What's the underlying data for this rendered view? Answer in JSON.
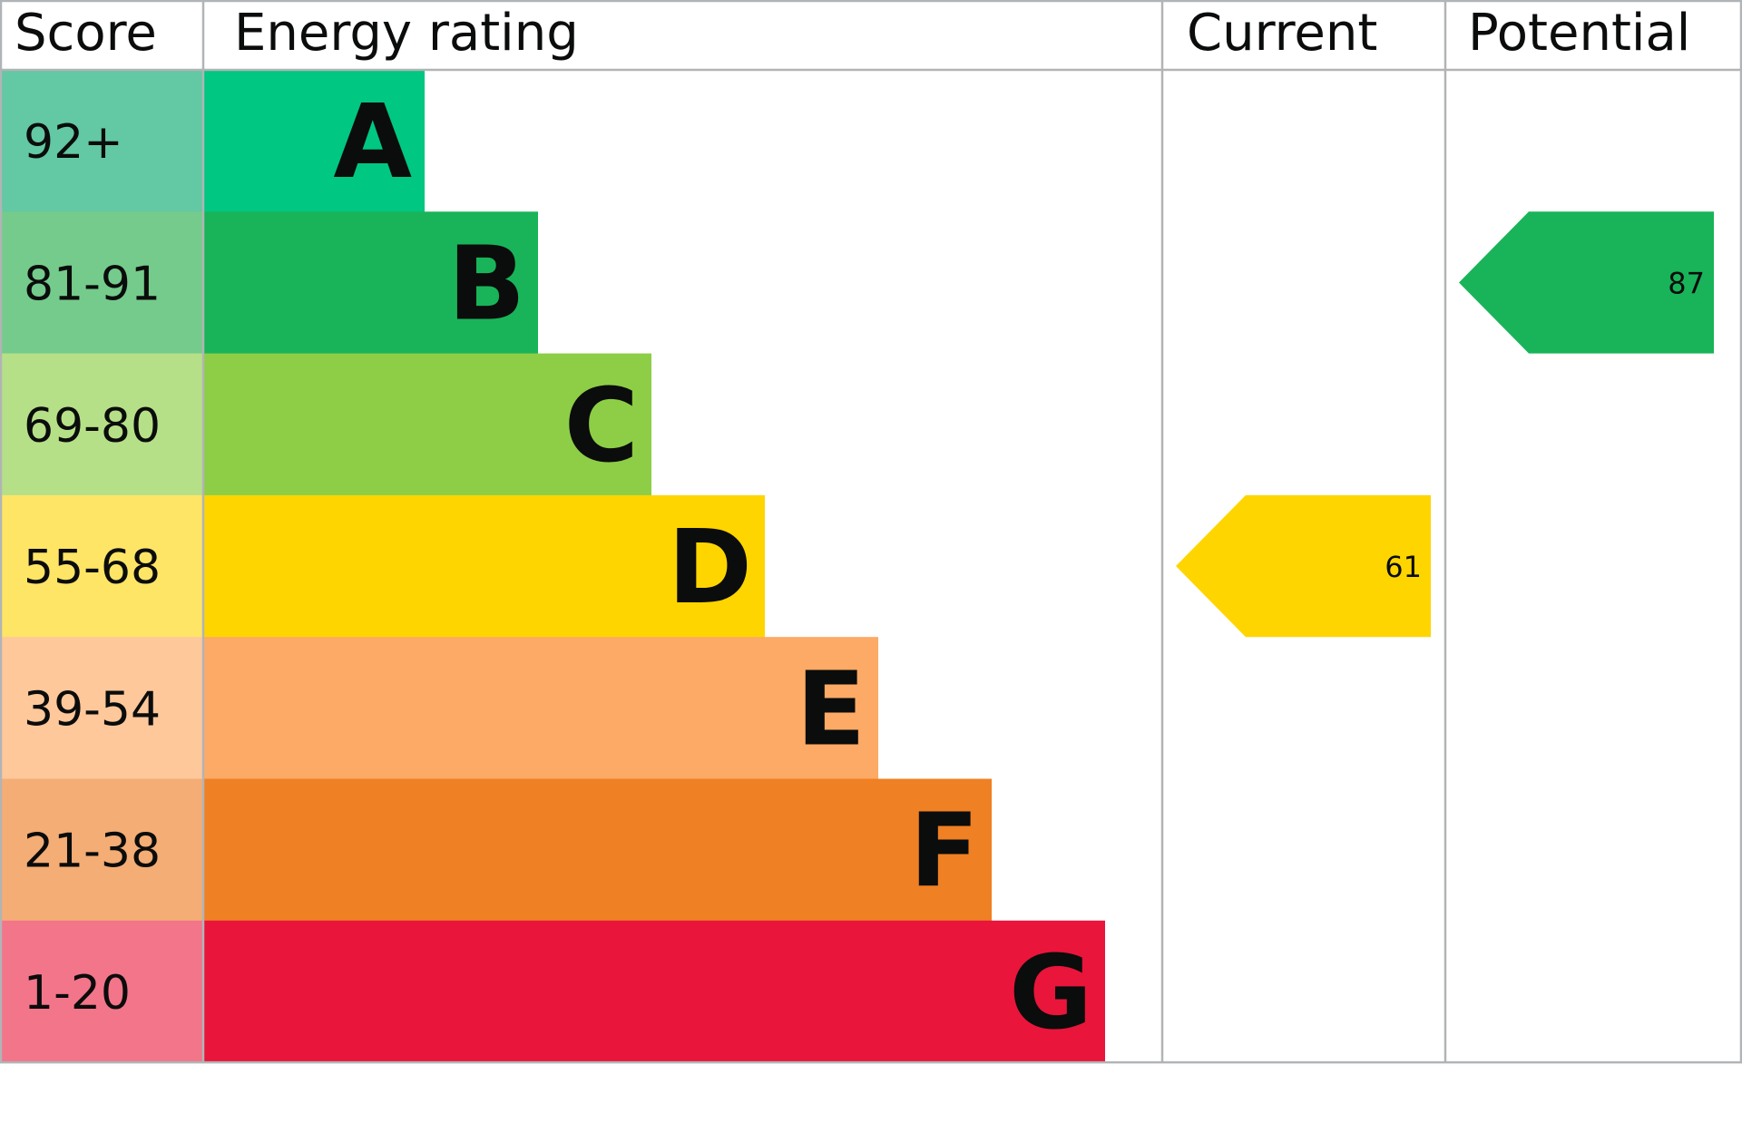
{
  "chart_data": {
    "type": "table",
    "headers": {
      "score": "Score",
      "rating": "Energy rating",
      "current": "Current",
      "potential": "Potential"
    },
    "bands": [
      {
        "letter": "A",
        "range": "92+",
        "color": "#00c781",
        "light": "#63c8a4"
      },
      {
        "letter": "B",
        "range": "81-91",
        "color": "#19b459",
        "light": "#75cb8b"
      },
      {
        "letter": "C",
        "range": "69-80",
        "color": "#8dce46",
        "light": "#b6e087"
      },
      {
        "letter": "D",
        "range": "55-68",
        "color": "#ffd500",
        "light": "#ffe566"
      },
      {
        "letter": "E",
        "range": "39-54",
        "color": "#fcaa65",
        "light": "#fec89b"
      },
      {
        "letter": "F",
        "range": "21-38",
        "color": "#ef8023",
        "light": "#f4ad75"
      },
      {
        "letter": "G",
        "range": "1-20",
        "color": "#e9153b",
        "light": "#f37589"
      }
    ],
    "current": {
      "value": "61",
      "band": "D"
    },
    "potential": {
      "value": "87",
      "band": "B"
    },
    "border_color": "#b1b4b6"
  }
}
